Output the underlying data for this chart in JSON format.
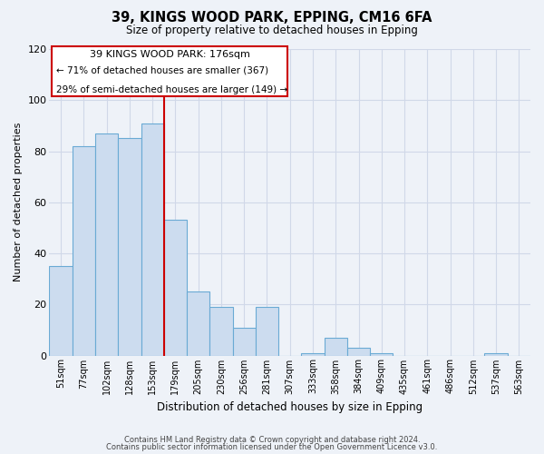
{
  "title": "39, KINGS WOOD PARK, EPPING, CM16 6FA",
  "subtitle": "Size of property relative to detached houses in Epping",
  "xlabel": "Distribution of detached houses by size in Epping",
  "ylabel": "Number of detached properties",
  "bin_labels": [
    "51sqm",
    "77sqm",
    "102sqm",
    "128sqm",
    "153sqm",
    "179sqm",
    "205sqm",
    "230sqm",
    "256sqm",
    "281sqm",
    "307sqm",
    "333sqm",
    "358sqm",
    "384sqm",
    "409sqm",
    "435sqm",
    "461sqm",
    "486sqm",
    "512sqm",
    "537sqm",
    "563sqm"
  ],
  "bar_heights": [
    35,
    82,
    87,
    85,
    91,
    53,
    25,
    19,
    11,
    19,
    0,
    1,
    7,
    3,
    1,
    0,
    0,
    0,
    0,
    1,
    0
  ],
  "bar_color": "#ccdcef",
  "bar_edge_color": "#6aaad4",
  "property_line_x": 4.5,
  "property_line_label": "39 KINGS WOOD PARK: 176sqm",
  "annotation_line1": "← 71% of detached houses are smaller (367)",
  "annotation_line2": "29% of semi-detached houses are larger (149) →",
  "annotation_box_color": "#ffffff",
  "annotation_box_edge_color": "#cc0000",
  "property_line_color": "#cc0000",
  "ylim": [
    0,
    120
  ],
  "footer_line1": "Contains HM Land Registry data © Crown copyright and database right 2024.",
  "footer_line2": "Contains public sector information licensed under the Open Government Licence v3.0.",
  "background_color": "#eef2f8",
  "grid_color": "#d0d8e8"
}
